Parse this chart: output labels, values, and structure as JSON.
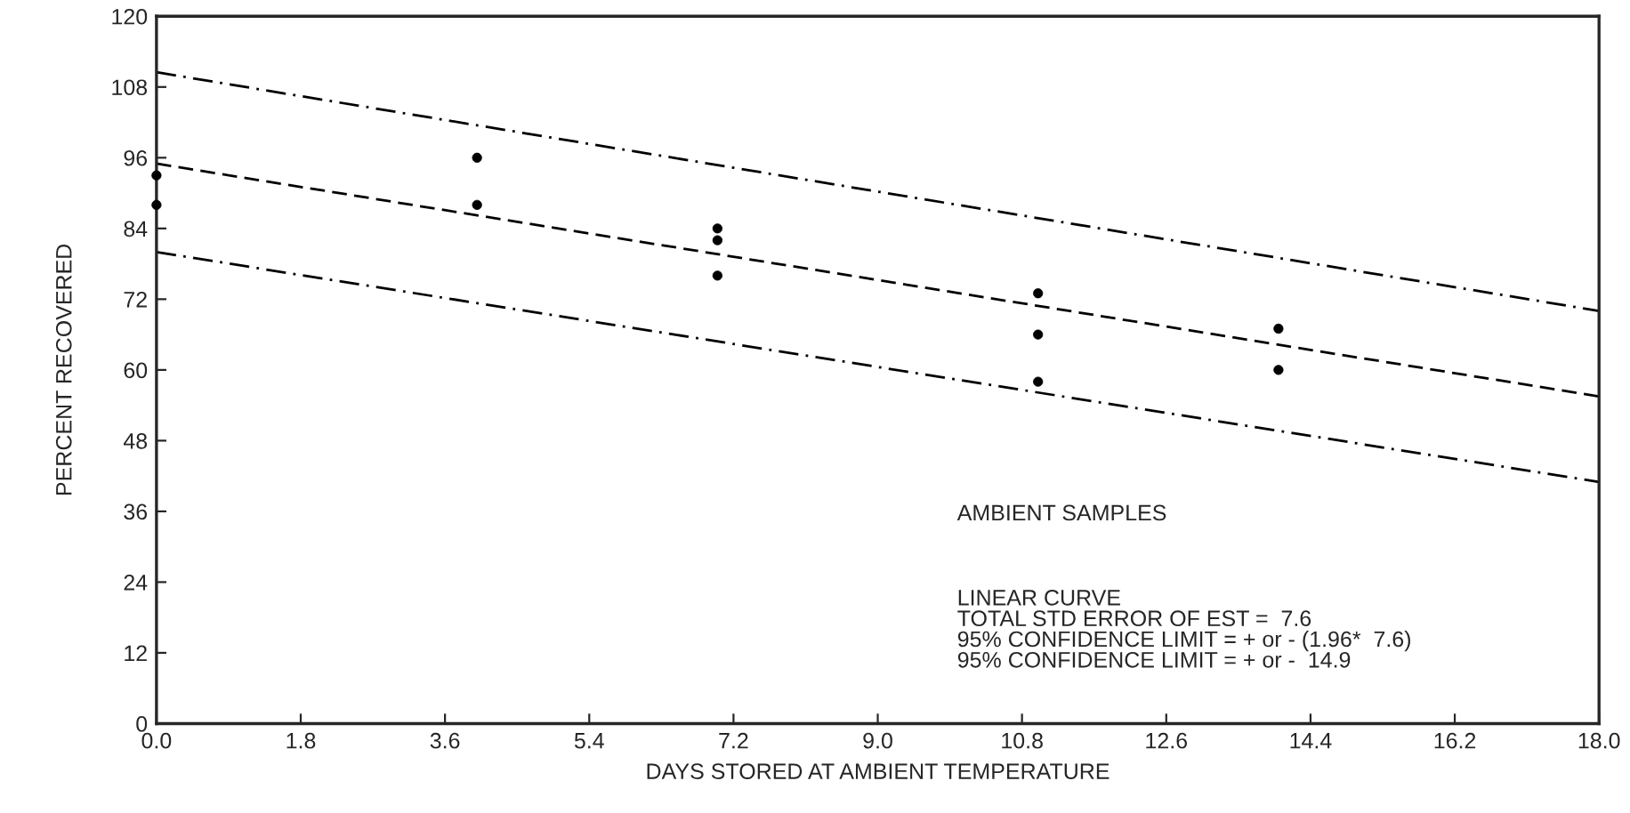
{
  "chart_data": {
    "type": "scatter",
    "xlabel": "DAYS STORED AT AMBIENT TEMPERATURE",
    "ylabel": "PERCENT RECOVERED",
    "xlim": [
      0,
      18
    ],
    "ylim": [
      0,
      120
    ],
    "xticks": [
      {
        "value": 0,
        "label": "0.0"
      },
      1.8,
      3.6,
      5.4,
      7.2,
      {
        "value": 9,
        "label": "9.0"
      },
      10.8,
      12.6,
      14.4,
      16.2,
      {
        "value": 18,
        "label": "18.0"
      }
    ],
    "yticks": [
      0,
      12,
      24,
      36,
      48,
      60,
      72,
      84,
      96,
      108,
      120
    ],
    "grid": false,
    "legend": false,
    "series": [
      {
        "marker": "circle",
        "color": "#000000",
        "x": [
          0,
          0,
          4,
          4,
          7,
          7,
          7,
          11,
          11,
          11,
          14,
          14
        ],
        "values": [
          93,
          88,
          96,
          88,
          84,
          82,
          76,
          73,
          66,
          58,
          67,
          60
        ]
      },
      {
        "type": "line",
        "color": "#000000",
        "line_style": "dashed",
        "x": [
          0,
          18
        ],
        "values": [
          95,
          55.5
        ]
      },
      {
        "type": "line",
        "color": "#000000",
        "line_style": "dashdot",
        "x": [
          0,
          18
        ],
        "values": [
          110.5,
          70
        ]
      },
      {
        "type": "line",
        "color": "#000000",
        "line_style": "dashdot",
        "x": [
          0,
          18
        ],
        "values": [
          80,
          41
        ]
      }
    ],
    "annotations": [
      "AMBIENT SAMPLES",
      "LINEAR CURVE\nTOTAL STD ERROR OF EST =  7.6\n95% CONFIDENCE LIMIT = + or - (1.96*  7.6)\n95% CONFIDENCE LIMIT = + or -  14.9"
    ]
  }
}
